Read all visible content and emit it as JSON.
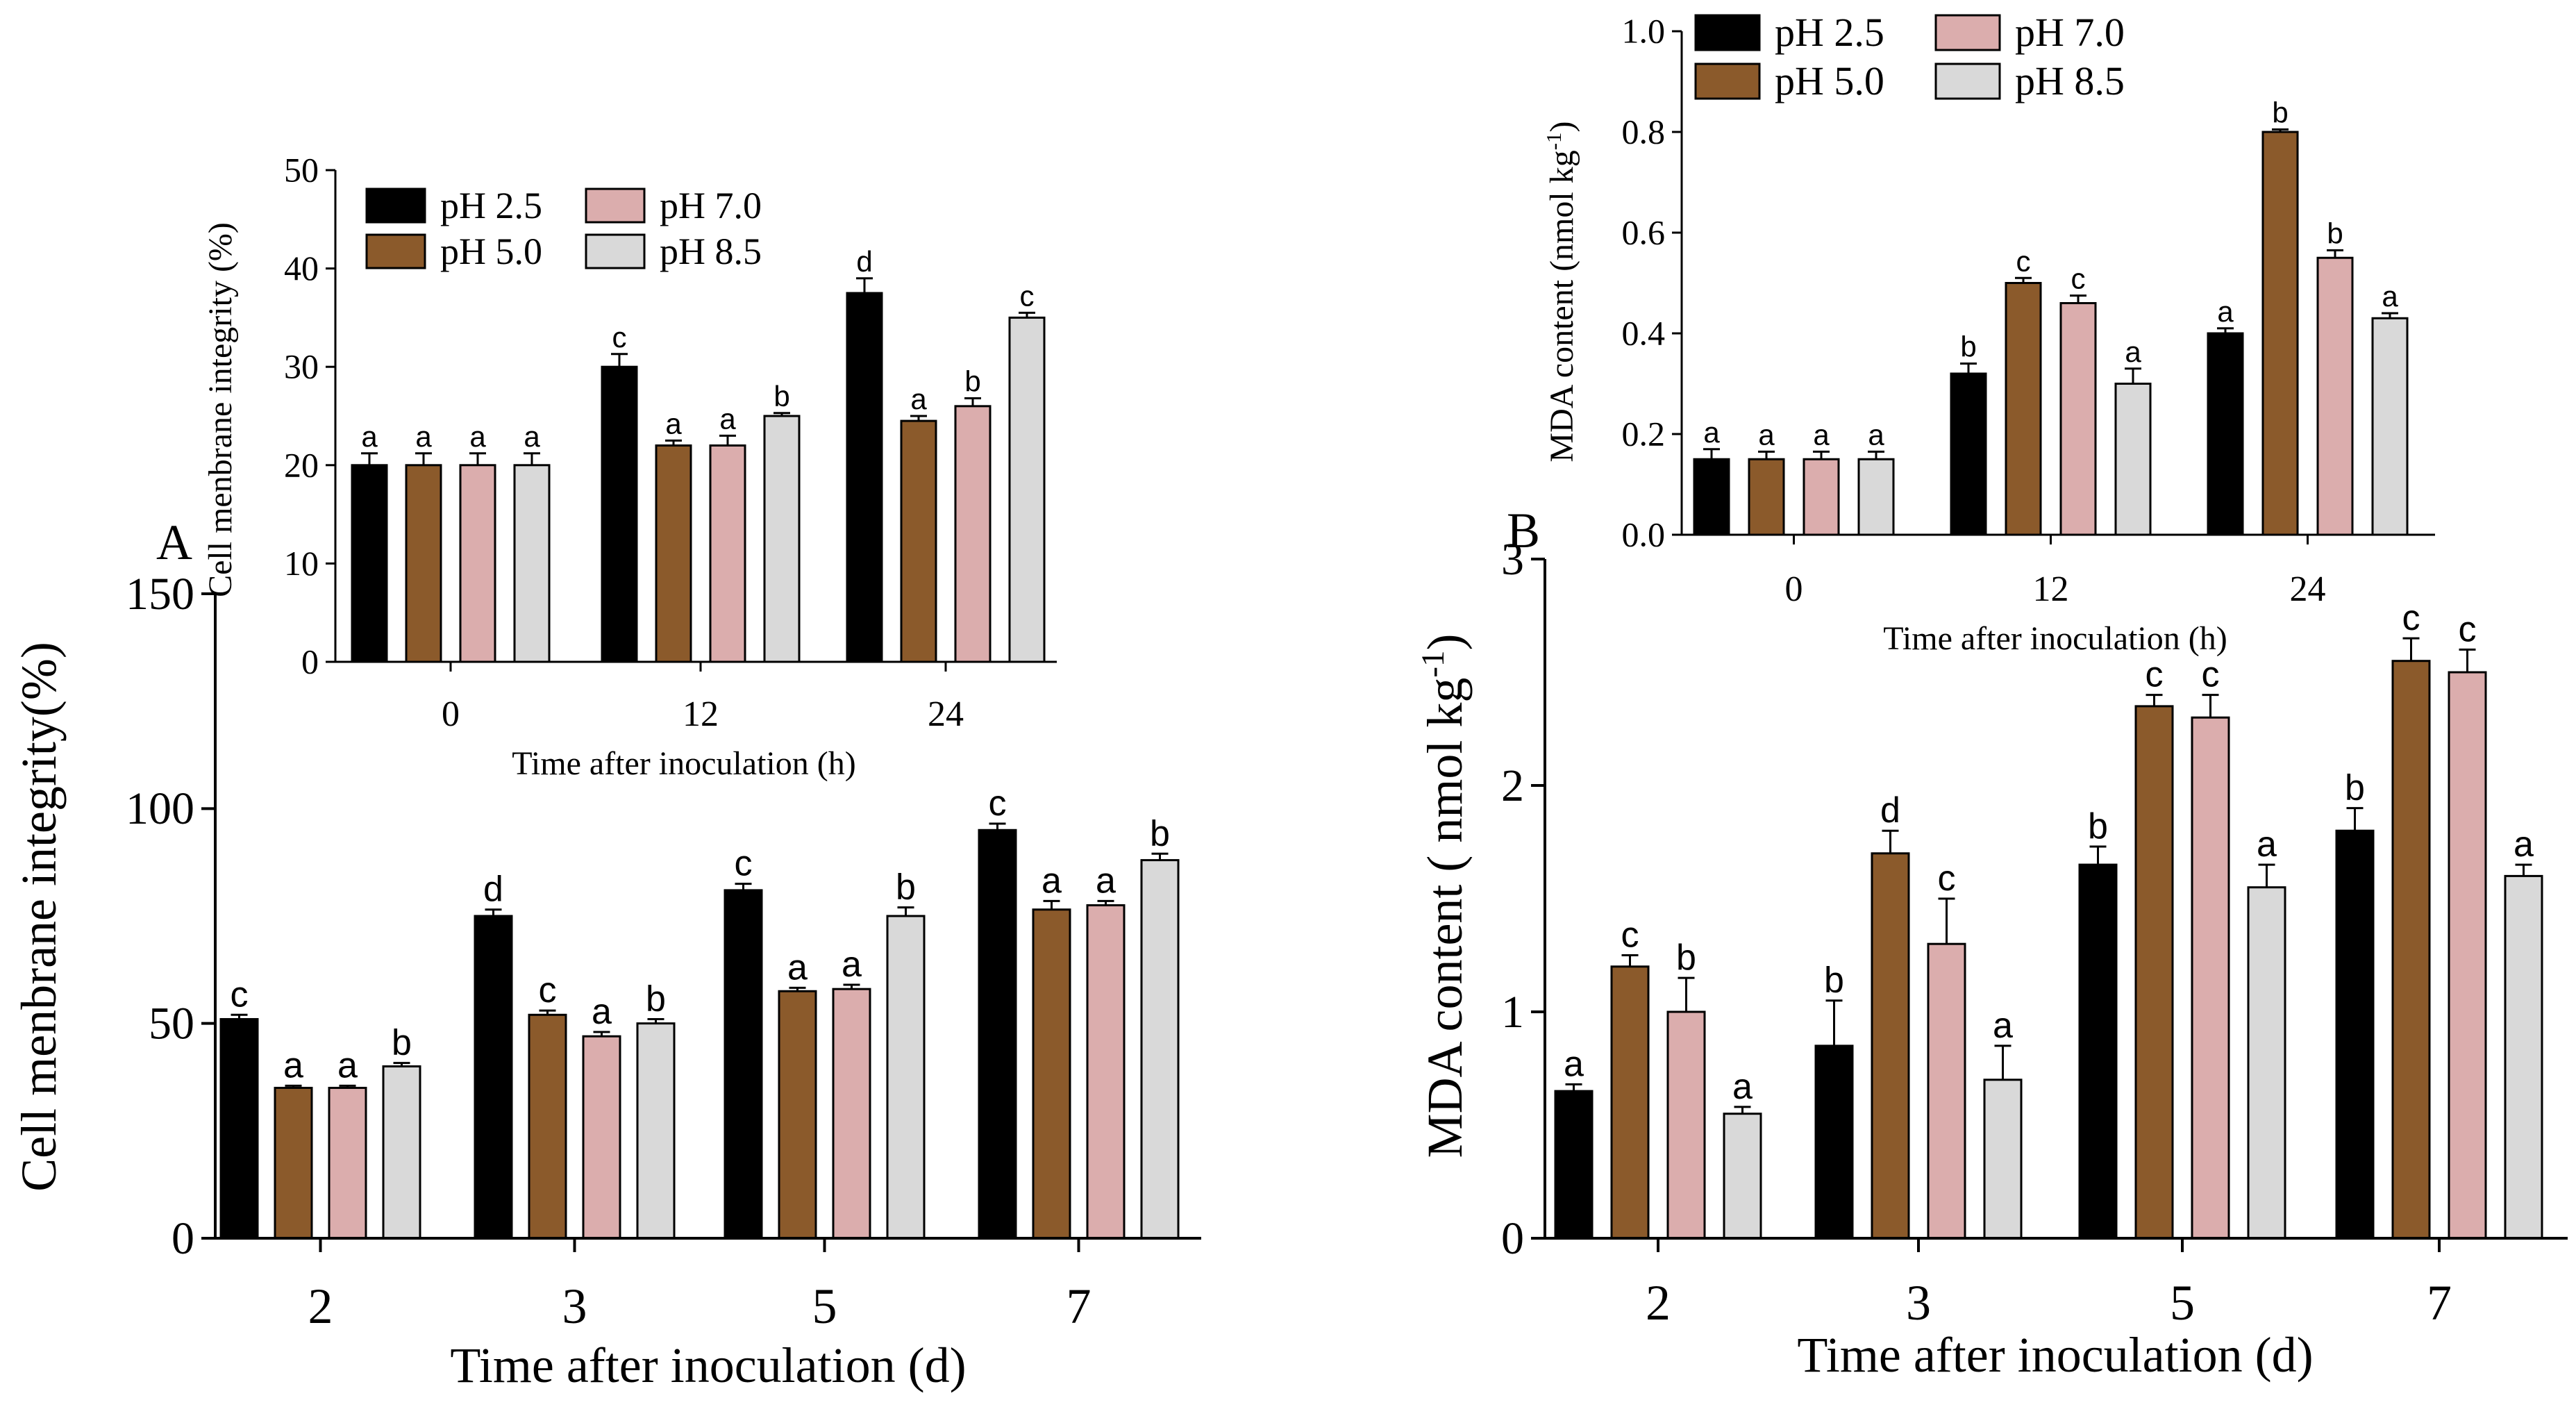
{
  "legend": {
    "series": [
      {
        "name": "pH 2.5",
        "color": "#000000"
      },
      {
        "name": "pH 5.0",
        "color": "#8b5a2b"
      },
      {
        "name": "pH 7.0",
        "color": "#dbadad"
      },
      {
        "name": "pH 8.5",
        "color": "#d9d9d9"
      }
    ]
  },
  "chart_data": [
    {
      "id": "A-main",
      "panel_label": "A",
      "type": "bar",
      "title": "",
      "xlabel": "Time after inoculation (d)",
      "ylabel": "Cell menbrane integrity(%)",
      "categories": [
        "2",
        "3",
        "5",
        "7"
      ],
      "ylim": [
        0,
        150
      ],
      "yticks": [
        "0",
        "50",
        "100",
        "150"
      ],
      "series": [
        {
          "name": "pH 2.5",
          "values": [
            51,
            75,
            81,
            95
          ],
          "errors": [
            1,
            1.5,
            1.5,
            1.5
          ],
          "letters": [
            "c",
            "d",
            "c",
            "c"
          ]
        },
        {
          "name": "pH 5.0",
          "values": [
            35,
            52,
            57.5,
            76.5
          ],
          "errors": [
            0.5,
            1,
            0.8,
            2
          ],
          "letters": [
            "a",
            "c",
            "a",
            "a"
          ]
        },
        {
          "name": "pH 7.0",
          "values": [
            35,
            47,
            58,
            77.5
          ],
          "errors": [
            0.5,
            1,
            1,
            1
          ],
          "letters": [
            "a",
            "a",
            "a",
            "a"
          ]
        },
        {
          "name": "pH 8.5",
          "values": [
            40,
            50,
            75,
            88
          ],
          "errors": [
            0.8,
            1,
            2,
            1.5
          ],
          "letters": [
            "b",
            "b",
            "b",
            "b"
          ]
        }
      ]
    },
    {
      "id": "A-inset",
      "type": "bar",
      "title": "",
      "xlabel": "Time after inoculation (h)",
      "ylabel": "Cell menbrane integrity (%)",
      "categories": [
        "0",
        "12",
        "24"
      ],
      "ylim": [
        0,
        50
      ],
      "yticks": [
        "0",
        "10",
        "20",
        "30",
        "40",
        "50"
      ],
      "series": [
        {
          "name": "pH 2.5",
          "values": [
            20,
            30,
            37.5
          ],
          "errors": [
            1.2,
            1.3,
            1.5
          ],
          "letters": [
            "a",
            "c",
            "d"
          ]
        },
        {
          "name": "pH 5.0",
          "values": [
            20,
            22,
            24.5
          ],
          "errors": [
            1.2,
            0.5,
            0.5
          ],
          "letters": [
            "a",
            "a",
            "a"
          ]
        },
        {
          "name": "pH 7.0",
          "values": [
            20,
            22,
            26
          ],
          "errors": [
            1.2,
            1,
            0.8
          ],
          "letters": [
            "a",
            "a",
            "b"
          ]
        },
        {
          "name": "pH 8.5",
          "values": [
            20,
            25,
            35
          ],
          "errors": [
            1.2,
            0.3,
            0.5
          ],
          "letters": [
            "a",
            "b",
            "c"
          ]
        }
      ]
    },
    {
      "id": "B-main",
      "panel_label": "B",
      "type": "bar",
      "title": "",
      "xlabel": "Time after inoculation (d)",
      "ylabel": "MDA content ( nmol kg",
      "ylabel_sup": "-1",
      "ylabel_end": ")",
      "categories": [
        "2",
        "3",
        "5",
        "7"
      ],
      "ylim": [
        0,
        3
      ],
      "yticks": [
        "0",
        "1",
        "2",
        "3"
      ],
      "series": [
        {
          "name": "pH 2.5",
          "values": [
            0.65,
            0.85,
            1.65,
            1.8
          ],
          "errors": [
            0.03,
            0.2,
            0.08,
            0.1
          ],
          "letters": [
            "a",
            "b",
            "b",
            "b"
          ]
        },
        {
          "name": "pH 5.0",
          "values": [
            1.2,
            1.7,
            2.35,
            2.55
          ],
          "errors": [
            0.05,
            0.1,
            0.05,
            0.1
          ],
          "letters": [
            "c",
            "d",
            "c",
            "c"
          ]
        },
        {
          "name": "pH 7.0",
          "values": [
            1.0,
            1.3,
            2.3,
            2.5
          ],
          "errors": [
            0.15,
            0.2,
            0.1,
            0.1
          ],
          "letters": [
            "b",
            "c",
            "c",
            "c"
          ]
        },
        {
          "name": "pH 8.5",
          "values": [
            0.55,
            0.7,
            1.55,
            1.6
          ],
          "errors": [
            0.03,
            0.15,
            0.1,
            0.05
          ],
          "letters": [
            "a",
            "a",
            "a",
            "a"
          ]
        }
      ]
    },
    {
      "id": "B-inset",
      "type": "bar",
      "title": "",
      "xlabel": "Time after inoculation (h)",
      "ylabel": "MDA content (nmol kg",
      "ylabel_sup": "-1",
      "ylabel_end": ")",
      "categories": [
        "0",
        "12",
        "24"
      ],
      "ylim": [
        0,
        1.0
      ],
      "yticks": [
        "0.0",
        "0.2",
        "0.4",
        "0.6",
        "0.8",
        "1.0"
      ],
      "series": [
        {
          "name": "pH 2.5",
          "values": [
            0.15,
            0.32,
            0.4
          ],
          "errors": [
            0.02,
            0.02,
            0.01
          ],
          "letters": [
            "a",
            "b",
            "a"
          ]
        },
        {
          "name": "pH 5.0",
          "values": [
            0.15,
            0.5,
            0.8
          ],
          "errors": [
            0.015,
            0.01,
            0.005
          ],
          "letters": [
            "a",
            "c",
            "b"
          ]
        },
        {
          "name": "pH 7.0",
          "values": [
            0.15,
            0.46,
            0.55
          ],
          "errors": [
            0.015,
            0.015,
            0.015
          ],
          "letters": [
            "a",
            "c",
            "b"
          ]
        },
        {
          "name": "pH 8.5",
          "values": [
            0.15,
            0.3,
            0.43
          ],
          "errors": [
            0.015,
            0.03,
            0.01
          ],
          "letters": [
            "a",
            "a",
            "a"
          ]
        }
      ]
    }
  ]
}
